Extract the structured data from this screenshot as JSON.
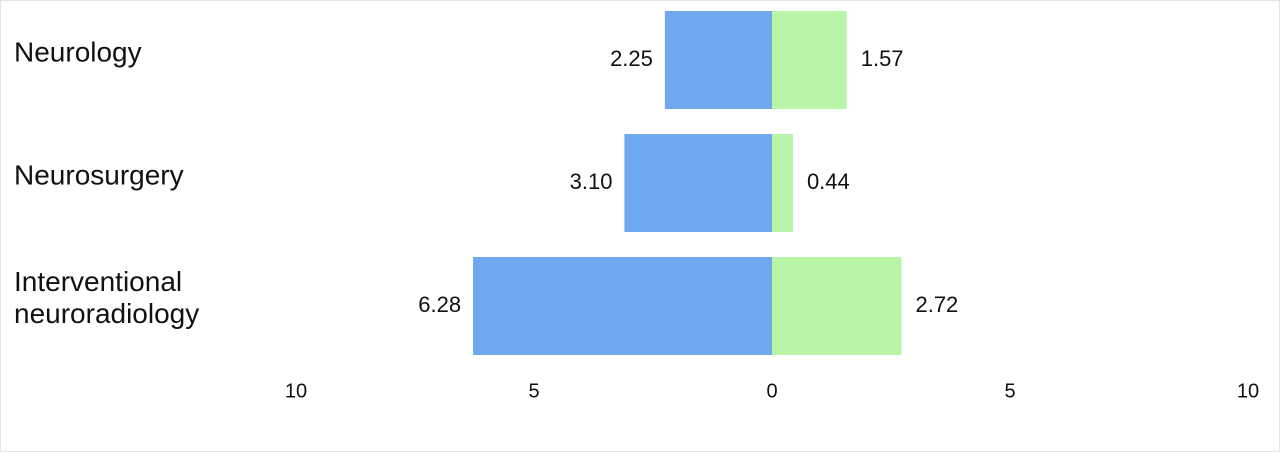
{
  "chart_data": {
    "type": "diverging-bar",
    "categories": [
      "Neurology",
      "Neurosurgery",
      "Interventional neuroradiology"
    ],
    "series": [
      {
        "color": "#6fa8ef",
        "side": "left",
        "values": [
          2.25,
          3.1,
          6.28
        ],
        "value_labels": [
          "2.25",
          "3.10",
          "6.28"
        ]
      },
      {
        "color": "#b8f5a8",
        "side": "right",
        "values": [
          1.57,
          0.44,
          2.72
        ]
      }
    ],
    "xlim": [
      -10,
      10
    ],
    "xticks": [
      {
        "value": -10,
        "label": "10"
      },
      {
        "value": -5,
        "label": "5"
      },
      0,
      5,
      10
    ]
  }
}
